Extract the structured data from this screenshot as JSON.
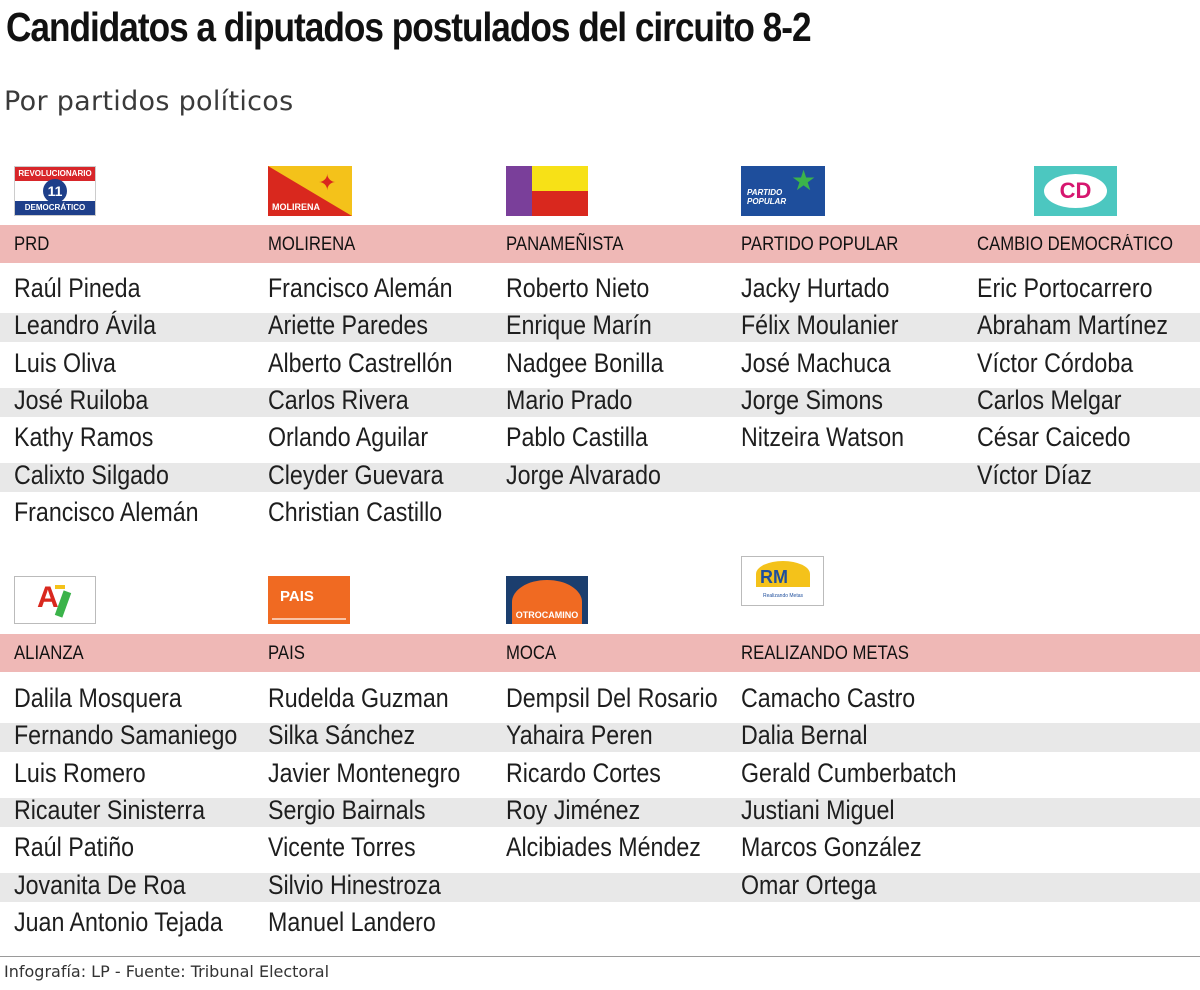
{
  "title": "Candidatos a diputados postulados del circuito 8-2",
  "subtitle": "Por partidos políticos",
  "logos": {
    "prd_top": "REVOLUCIONARIO",
    "prd_num": "11",
    "prd_bottom": "DEMOCRÁTICO",
    "molirena": "MOLIRENA",
    "pp": "PARTIDO\nPOPULAR",
    "cd": "CD",
    "pais": "PAIS",
    "moca": "OTROCAMINO",
    "rm": "RM",
    "rm_sub": "Realizando Metas",
    "ali": "A"
  },
  "sections": [
    {
      "parties": [
        {
          "name": "PRD",
          "candidates": [
            "Raúl Pineda",
            "Leandro Ávila",
            "Luis Oliva",
            "José Ruiloba",
            "Kathy Ramos",
            "Calixto Silgado",
            "Francisco Alemán"
          ]
        },
        {
          "name": "MOLIRENA",
          "candidates": [
            "Francisco Alemán",
            "Ariette Paredes",
            "Alberto Castrellón",
            "Carlos Rivera",
            "Orlando Aguilar",
            "Cleyder Guevara",
            "Christian Castillo"
          ]
        },
        {
          "name": "PANAMEÑISTA",
          "candidates": [
            "Roberto Nieto",
            "Enrique Marín",
            "Nadgee Bonilla",
            "Mario Prado",
            "Pablo Castilla",
            "Jorge Alvarado"
          ]
        },
        {
          "name": "PARTIDO POPULAR",
          "candidates": [
            "Jacky Hurtado",
            "Félix Moulanier",
            "José Machuca",
            "Jorge Simons",
            "Nitzeira Watson"
          ]
        },
        {
          "name": "CAMBIO DEMOCRÁTICO",
          "candidates": [
            "Eric Portocarrero",
            "Abraham Martínez",
            "Víctor Córdoba",
            "Carlos Melgar",
            "César Caicedo",
            "Víctor Díaz"
          ]
        }
      ]
    },
    {
      "parties": [
        {
          "name": "ALIANZA",
          "candidates": [
            "Dalila Mosquera",
            "Fernando Samaniego",
            "Luis Romero",
            "Ricauter Sinisterra",
            "Raúl Patiño",
            "Jovanita De Roa",
            "Juan Antonio Tejada"
          ]
        },
        {
          "name": "PAIS",
          "candidates": [
            "Rudelda Guzman",
            "Silka Sánchez",
            "Javier Montenegro",
            "Sergio Bairnals",
            "Vicente Torres",
            "Silvio Hinestroza",
            "Manuel Landero"
          ]
        },
        {
          "name": "MOCA",
          "candidates": [
            "Dempsil Del Rosario",
            "Yahaira Peren",
            "Ricardo Cortes",
            "Roy Jiménez",
            "Alcibiades Méndez"
          ]
        },
        {
          "name": "REALIZANDO METAS",
          "candidates": [
            "Camacho Castro",
            "Dalia Bernal",
            "Gerald Cumberbatch",
            "Justiani Miguel",
            "Marcos González",
            "Omar Ortega"
          ]
        }
      ]
    }
  ],
  "footer": "Infografía: LP - Fuente: Tribunal Electoral",
  "colors": {
    "header_band": "#efb8b6",
    "row_band": "#e8e8e8"
  }
}
